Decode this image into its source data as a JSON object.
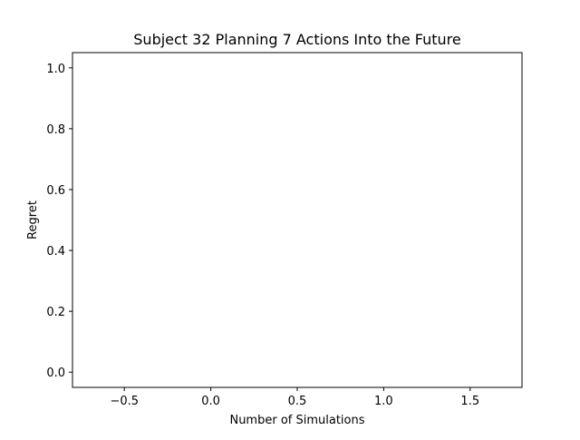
{
  "chart_data": {
    "type": "line",
    "title": "Subject 32 Planning 7 Actions Into the Future",
    "xlabel": "Number of Simulations",
    "ylabel": "Regret",
    "xlim": [
      -0.8,
      1.8
    ],
    "ylim": [
      -0.05,
      1.05
    ],
    "xticks": [
      -0.5,
      0.0,
      0.5,
      1.0,
      1.5
    ],
    "xtick_labels": [
      "−0.5",
      "0.0",
      "0.5",
      "1.0",
      "1.5"
    ],
    "yticks": [
      0.0,
      0.2,
      0.4,
      0.6,
      0.8,
      1.0
    ],
    "ytick_labels": [
      "0.0",
      "0.2",
      "0.4",
      "0.6",
      "0.8",
      "1.0"
    ],
    "grid": false,
    "series": []
  }
}
